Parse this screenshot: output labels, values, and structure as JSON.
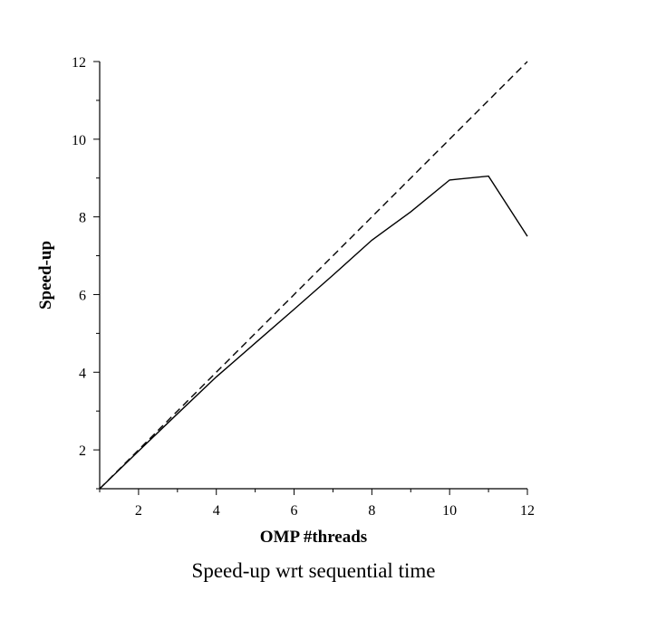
{
  "chart_data": {
    "type": "line",
    "title": "Speed-up wrt sequential time",
    "xlabel": "OMP #threads",
    "ylabel": "Speed-up",
    "xlim": [
      1,
      12
    ],
    "ylim": [
      1,
      12
    ],
    "xticks": [
      2,
      4,
      6,
      8,
      10,
      12
    ],
    "yticks": [
      2,
      4,
      6,
      8,
      10,
      12
    ],
    "grid": false,
    "series": [
      {
        "style": "solid",
        "x": [
          1,
          2,
          3,
          4,
          5,
          6,
          7,
          8,
          9,
          10,
          11,
          12
        ],
        "y": [
          1,
          1.97,
          2.93,
          3.88,
          4.75,
          5.62,
          6.5,
          7.4,
          8.13,
          8.95,
          9.05,
          7.5
        ]
      },
      {
        "style": "dashed",
        "x": [
          1,
          12
        ],
        "y": [
          1,
          12
        ]
      }
    ]
  }
}
